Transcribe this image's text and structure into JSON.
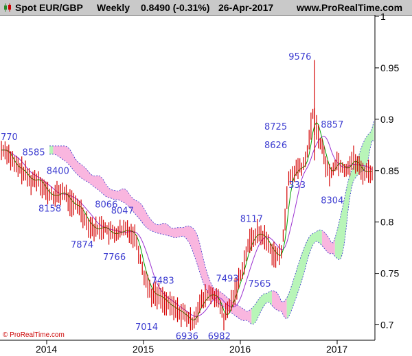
{
  "header": {
    "title": "Spot EUR/GBP",
    "interval": "Weekly",
    "price": "0.8490 (-0.31%)",
    "date": "26-Apr-2017",
    "site": "www.ProRealTime.com"
  },
  "credit": "© ProRealTime.com",
  "chart_data": {
    "type": "candlestick",
    "x_axis": {
      "ticks": [
        "2014",
        "2015",
        "2016",
        "2017"
      ]
    },
    "y_axis": {
      "ticks": [
        "1",
        "0.95",
        "0.9",
        "0.85",
        "0.8",
        "0.75",
        "0.7"
      ],
      "ylim": [
        0.685,
        1.0
      ],
      "position": "right"
    },
    "series": [
      {
        "kind": "price",
        "points": [
          [
            "2013-08-01",
            0.87
          ],
          [
            "2013-09-01",
            0.855
          ],
          [
            "2013-10-01",
            0.85
          ],
          [
            "2013-11-01",
            0.84
          ],
          [
            "2013-12-01",
            0.842
          ],
          [
            "2014-01-01",
            0.828
          ],
          [
            "2014-02-01",
            0.825
          ],
          [
            "2014-03-01",
            0.83
          ],
          [
            "2014-04-01",
            0.818
          ],
          [
            "2014-05-01",
            0.815
          ],
          [
            "2014-06-01",
            0.8
          ],
          [
            "2014-07-01",
            0.792
          ],
          [
            "2014-08-01",
            0.796
          ],
          [
            "2014-09-01",
            0.788
          ],
          [
            "2014-10-01",
            0.79
          ],
          [
            "2014-11-01",
            0.793
          ],
          [
            "2014-12-01",
            0.786
          ],
          [
            "2015-01-01",
            0.75
          ],
          [
            "2015-02-01",
            0.73
          ],
          [
            "2015-03-01",
            0.728
          ],
          [
            "2015-04-01",
            0.72
          ],
          [
            "2015-05-01",
            0.715
          ],
          [
            "2015-06-01",
            0.71
          ],
          [
            "2015-07-01",
            0.702
          ],
          [
            "2015-08-01",
            0.72
          ],
          [
            "2015-09-01",
            0.73
          ],
          [
            "2015-10-01",
            0.728
          ],
          [
            "2015-11-01",
            0.705
          ],
          [
            "2015-12-01",
            0.725
          ],
          [
            "2016-01-01",
            0.748
          ],
          [
            "2016-02-01",
            0.778
          ],
          [
            "2016-03-01",
            0.79
          ],
          [
            "2016-04-01",
            0.785
          ],
          [
            "2016-05-01",
            0.77
          ],
          [
            "2016-06-01",
            0.765
          ],
          [
            "2016-07-01",
            0.84
          ],
          [
            "2016-08-01",
            0.852
          ],
          [
            "2016-09-01",
            0.855
          ],
          [
            "2016-10-01",
            0.905
          ],
          [
            "2016-11-01",
            0.875
          ],
          [
            "2016-12-01",
            0.845
          ],
          [
            "2017-01-01",
            0.86
          ],
          [
            "2017-02-01",
            0.85
          ],
          [
            "2017-03-01",
            0.862
          ],
          [
            "2017-04-01",
            0.849
          ]
        ]
      }
    ],
    "annotations": [
      {
        "label": "770",
        "x": "2013-07-01",
        "y": 0.88
      },
      {
        "label": "8585",
        "x": "2013-11-01",
        "y": 0.865
      },
      {
        "label": "8400",
        "x": "2014-02-01",
        "y": 0.847
      },
      {
        "label": "8158",
        "x": "2014-01-01",
        "y": 0.81
      },
      {
        "label": "8066",
        "x": "2014-08-01",
        "y": 0.814
      },
      {
        "label": "8047",
        "x": "2014-10-01",
        "y": 0.808
      },
      {
        "label": "7874",
        "x": "2014-05-01",
        "y": 0.775
      },
      {
        "label": "7766",
        "x": "2014-09-01",
        "y": 0.763
      },
      {
        "label": "7483",
        "x": "2015-03-01",
        "y": 0.74
      },
      {
        "label": "7493",
        "x": "2015-11-01",
        "y": 0.742
      },
      {
        "label": "7014",
        "x": "2015-01-01",
        "y": 0.695
      },
      {
        "label": "6936",
        "x": "2015-06-01",
        "y": 0.686
      },
      {
        "label": "6982",
        "x": "2015-10-01",
        "y": 0.686
      },
      {
        "label": "8117",
        "x": "2016-02-01",
        "y": 0.8
      },
      {
        "label": "7565",
        "x": "2016-03-01",
        "y": 0.737
      },
      {
        "label": "8725",
        "x": "2016-05-01",
        "y": 0.89
      },
      {
        "label": "8626",
        "x": "2016-05-01",
        "y": 0.872
      },
      {
        "label": "333",
        "x": "2016-08-01",
        "y": 0.833
      },
      {
        "label": "9576",
        "x": "2016-08-01",
        "y": 0.958
      },
      {
        "label": "8857",
        "x": "2016-12-01",
        "y": 0.892
      },
      {
        "label": "8304",
        "x": "2016-12-01",
        "y": 0.818
      }
    ],
    "colors": {
      "bar": "#d40000",
      "fast_line": "#00a000",
      "slow_line": "#9b30d0",
      "cloud_green": "#b8f5b8",
      "cloud_pink": "#f9b6df",
      "cloud_edge": "#3030cc",
      "label": "#3b3bd0"
    },
    "grid": false
  }
}
